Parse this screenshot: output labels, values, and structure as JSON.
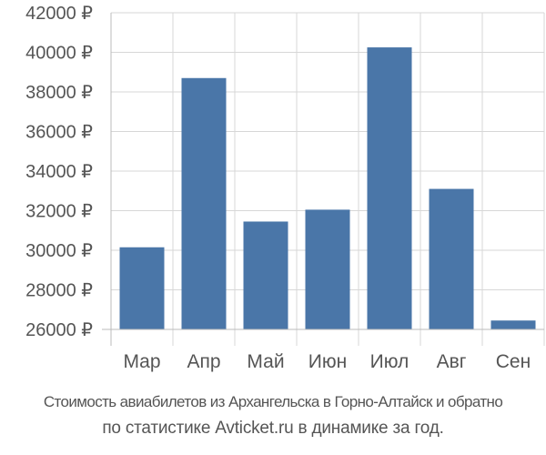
{
  "chart_data": {
    "type": "bar",
    "categories": [
      "Мар",
      "Апр",
      "Май",
      "Июн",
      "Июл",
      "Авг",
      "Сен"
    ],
    "values": [
      30150,
      38700,
      31450,
      32050,
      40250,
      33100,
      26450
    ],
    "ylim": [
      26000,
      42000
    ],
    "yticks": [
      26000,
      28000,
      30000,
      32000,
      34000,
      36000,
      38000,
      40000,
      42000
    ],
    "ytick_labels": [
      "26000 ₽",
      "28000 ₽",
      "30000 ₽",
      "32000 ₽",
      "34000 ₽",
      "36000 ₽",
      "38000 ₽",
      "40000 ₽",
      "42000 ₽"
    ],
    "grid": true,
    "bar_color": "#4a76a8",
    "grid_color": "#d7d7d7",
    "label_color": "#555555"
  },
  "caption": {
    "line1": "Стоимость авиабилетов из Архангельска в Горно-Алтайск и обратно",
    "line2": "по статистике Avticket.ru в динамике за год."
  }
}
